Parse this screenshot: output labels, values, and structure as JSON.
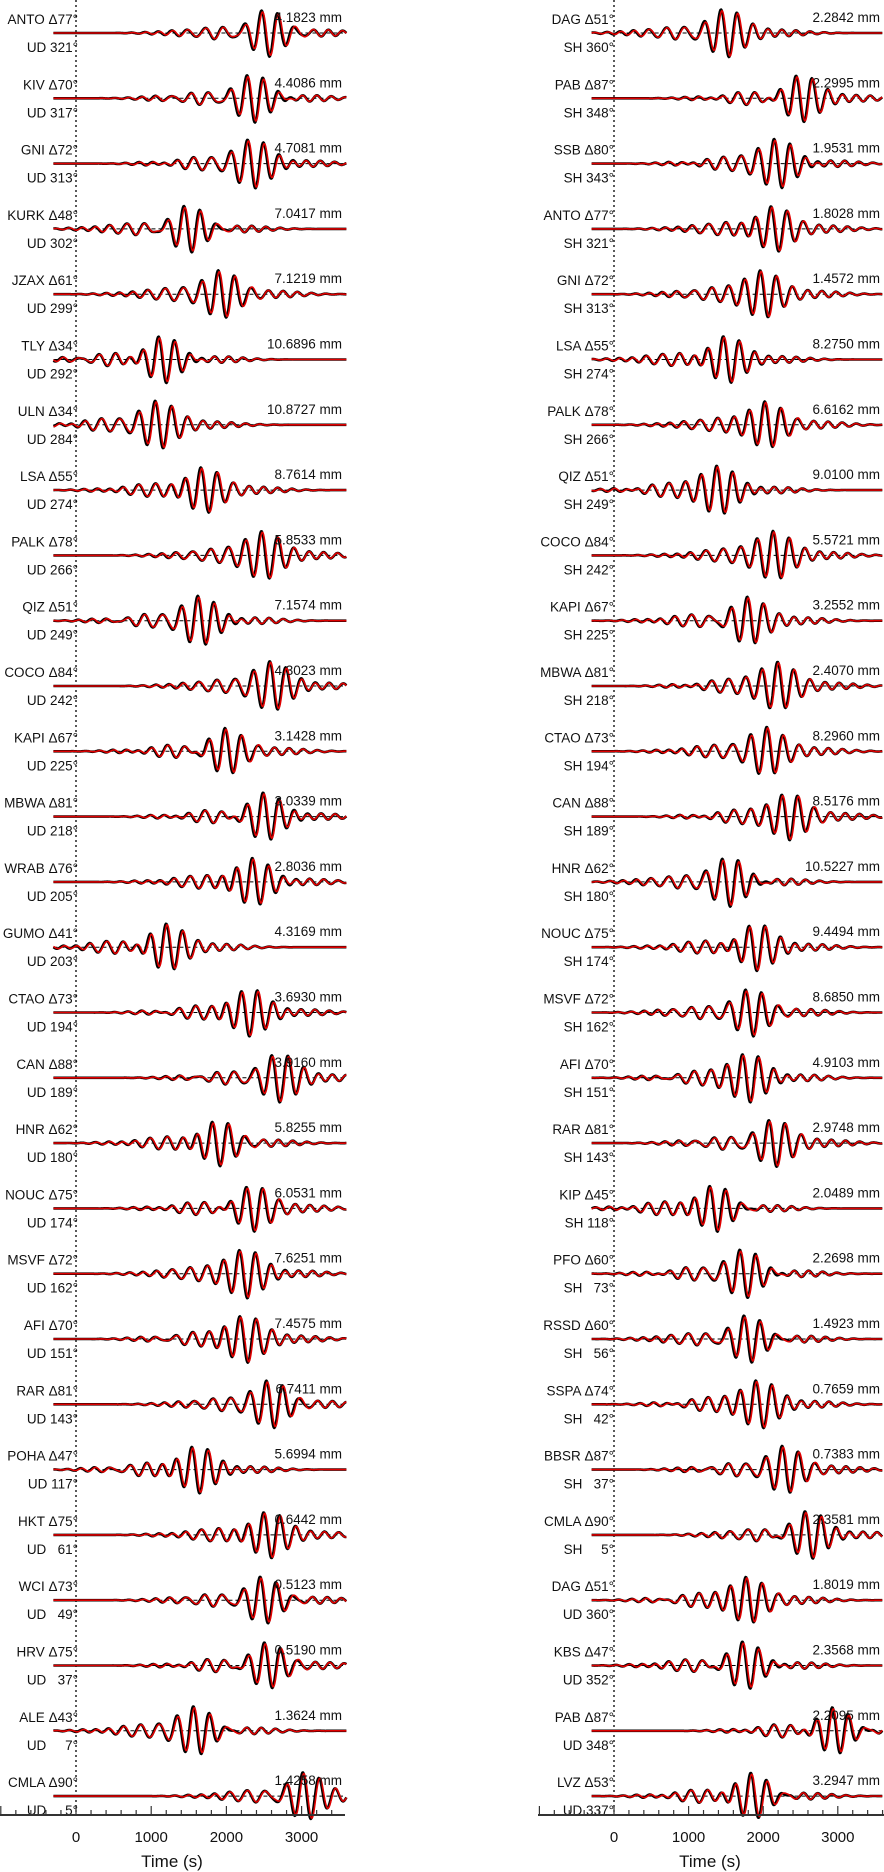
{
  "chart_data": {
    "type": "line",
    "xlabel": "Time (s)",
    "xlim": [
      -1000,
      3600
    ],
    "xticks": [
      0,
      1000,
      2000,
      3000
    ],
    "amplitude_unit": "mm",
    "series_colors": {
      "observed": "#000000",
      "synthetic": "#e00000"
    },
    "panels": [
      {
        "traces": [
          {
            "station": "ANTO",
            "distance": "77",
            "component": "UD",
            "azimuth": "321",
            "amplitude": "4.1823",
            "peak_time": 2550
          },
          {
            "station": "KIV",
            "distance": "70",
            "component": "UD",
            "azimuth": "317",
            "amplitude": "4.4086",
            "peak_time": 2350
          },
          {
            "station": "GNI",
            "distance": "72",
            "component": "UD",
            "azimuth": "313",
            "amplitude": "4.7081",
            "peak_time": 2350
          },
          {
            "station": "KURK",
            "distance": "48",
            "component": "UD",
            "azimuth": "302",
            "amplitude": "7.0417",
            "peak_time": 1500
          },
          {
            "station": "JZAX",
            "distance": "61",
            "component": "UD",
            "azimuth": "299",
            "amplitude": "7.1219",
            "peak_time": 1950
          },
          {
            "station": "TLY",
            "distance": "34",
            "component": "UD",
            "azimuth": "292",
            "amplitude": "10.6896",
            "peak_time": 1150
          },
          {
            "station": "ULN",
            "distance": "34",
            "component": "UD",
            "azimuth": "284",
            "amplitude": "10.8727",
            "peak_time": 1100
          },
          {
            "station": "LSA",
            "distance": "55",
            "component": "UD",
            "azimuth": "274",
            "amplitude": "8.7614",
            "peak_time": 1700
          },
          {
            "station": "PALK",
            "distance": "78",
            "component": "UD",
            "azimuth": "266",
            "amplitude": "5.8533",
            "peak_time": 2500
          },
          {
            "station": "QIZ",
            "distance": "51",
            "component": "UD",
            "azimuth": "249",
            "amplitude": "7.1574",
            "peak_time": 1650
          },
          {
            "station": "COCO",
            "distance": "84",
            "component": "UD",
            "azimuth": "242",
            "amplitude": "4.3023",
            "peak_time": 2600
          },
          {
            "station": "KAPI",
            "distance": "67",
            "component": "UD",
            "azimuth": "225",
            "amplitude": "3.1428",
            "peak_time": 2000
          },
          {
            "station": "MBWA",
            "distance": "81",
            "component": "UD",
            "azimuth": "218",
            "amplitude": "3.0339",
            "peak_time": 2500
          },
          {
            "station": "WRAB",
            "distance": "76",
            "component": "UD",
            "azimuth": "205",
            "amplitude": "2.8036",
            "peak_time": 2350
          },
          {
            "station": "GUMO",
            "distance": "41",
            "component": "UD",
            "azimuth": "203",
            "amplitude": "4.3169",
            "peak_time": 1200
          },
          {
            "station": "CTAO",
            "distance": "73",
            "component": "UD",
            "azimuth": "194",
            "amplitude": "3.6930",
            "peak_time": 2300
          },
          {
            "station": "CAN",
            "distance": "88",
            "component": "UD",
            "azimuth": "189",
            "amplitude": "3.9160",
            "peak_time": 2700
          },
          {
            "station": "HNR",
            "distance": "62",
            "component": "UD",
            "azimuth": "180",
            "amplitude": "5.8255",
            "peak_time": 1900
          },
          {
            "station": "NOUC",
            "distance": "75",
            "component": "UD",
            "azimuth": "174",
            "amplitude": "6.0531",
            "peak_time": 2350
          },
          {
            "station": "MSVF",
            "distance": "72",
            "component": "UD",
            "azimuth": "162",
            "amplitude": "7.6251",
            "peak_time": 2250
          },
          {
            "station": "AFI",
            "distance": "70",
            "component": "UD",
            "azimuth": "151",
            "amplitude": "7.4575",
            "peak_time": 2250
          },
          {
            "station": "RAR",
            "distance": "81",
            "component": "UD",
            "azimuth": "143",
            "amplitude": "6.7411",
            "peak_time": 2600
          },
          {
            "station": "POHA",
            "distance": "47",
            "component": "UD",
            "azimuth": "117",
            "amplitude": "5.6994",
            "peak_time": 1600
          },
          {
            "station": "HKT",
            "distance": "75",
            "component": "UD",
            "azimuth": "61",
            "amplitude": "0.6442",
            "peak_time": 2550
          },
          {
            "station": "WCI",
            "distance": "73",
            "component": "UD",
            "azimuth": "49",
            "amplitude": "0.5123",
            "peak_time": 2500
          },
          {
            "station": "HRV",
            "distance": "75",
            "component": "UD",
            "azimuth": "37",
            "amplitude": "0.5190",
            "peak_time": 2550
          },
          {
            "station": "ALE",
            "distance": "43",
            "component": "UD",
            "azimuth": "7",
            "amplitude": "1.3624",
            "peak_time": 1600
          },
          {
            "station": "CMLA",
            "distance": "90",
            "component": "UD",
            "azimuth": "5",
            "amplitude": "1.4258",
            "peak_time": 3050
          }
        ]
      },
      {
        "traces": [
          {
            "station": "DAG",
            "distance": "51",
            "component": "SH",
            "azimuth": "360",
            "amplitude": "2.2842",
            "peak_time": 1500
          },
          {
            "station": "PAB",
            "distance": "87",
            "component": "SH",
            "azimuth": "348",
            "amplitude": "2.2995",
            "peak_time": 2500
          },
          {
            "station": "SSB",
            "distance": "80",
            "component": "SH",
            "azimuth": "343",
            "amplitude": "1.9531",
            "peak_time": 2200
          },
          {
            "station": "ANTO",
            "distance": "77",
            "component": "SH",
            "azimuth": "321",
            "amplitude": "1.8028",
            "peak_time": 2150
          },
          {
            "station": "GNI",
            "distance": "72",
            "component": "SH",
            "azimuth": "313",
            "amplitude": "1.4572",
            "peak_time": 2000
          },
          {
            "station": "LSA",
            "distance": "55",
            "component": "SH",
            "azimuth": "274",
            "amplitude": "8.2750",
            "peak_time": 1500
          },
          {
            "station": "PALK",
            "distance": "78",
            "component": "SH",
            "azimuth": "266",
            "amplitude": "6.6162",
            "peak_time": 2050
          },
          {
            "station": "QIZ",
            "distance": "51",
            "component": "SH",
            "azimuth": "249",
            "amplitude": "9.0100",
            "peak_time": 1400
          },
          {
            "station": "COCO",
            "distance": "84",
            "component": "SH",
            "azimuth": "242",
            "amplitude": "5.5721",
            "peak_time": 2150
          },
          {
            "station": "KAPI",
            "distance": "67",
            "component": "SH",
            "azimuth": "225",
            "amplitude": "3.2552",
            "peak_time": 1800
          },
          {
            "station": "MBWA",
            "distance": "81",
            "component": "SH",
            "azimuth": "218",
            "amplitude": "2.4070",
            "peak_time": 2200
          },
          {
            "station": "CTAO",
            "distance": "73",
            "component": "SH",
            "azimuth": "194",
            "amplitude": "8.2960",
            "peak_time": 2050
          },
          {
            "station": "CAN",
            "distance": "88",
            "component": "SH",
            "azimuth": "189",
            "amplitude": "8.5176",
            "peak_time": 2350
          },
          {
            "station": "HNR",
            "distance": "62",
            "component": "SH",
            "azimuth": "180",
            "amplitude": "10.5227",
            "peak_time": 1550
          },
          {
            "station": "NOUC",
            "distance": "75",
            "component": "SH",
            "azimuth": "174",
            "amplitude": "9.4494",
            "peak_time": 1900
          },
          {
            "station": "MSVF",
            "distance": "72",
            "component": "SH",
            "azimuth": "162",
            "amplitude": "8.6850",
            "peak_time": 1850
          },
          {
            "station": "AFI",
            "distance": "70",
            "component": "SH",
            "azimuth": "151",
            "amplitude": "4.9103",
            "peak_time": 1800
          },
          {
            "station": "RAR",
            "distance": "81",
            "component": "SH",
            "azimuth": "143",
            "amplitude": "2.9748",
            "peak_time": 2150
          },
          {
            "station": "KIP",
            "distance": "45",
            "component": "SH",
            "azimuth": "118",
            "amplitude": "2.0489",
            "peak_time": 1350
          },
          {
            "station": "PFO",
            "distance": "60",
            "component": "SH",
            "azimuth": "73",
            "amplitude": "2.2698",
            "peak_time": 1750
          },
          {
            "station": "RSSD",
            "distance": "60",
            "component": "SH",
            "azimuth": "56",
            "amplitude": "1.4923",
            "peak_time": 1800
          },
          {
            "station": "SSPA",
            "distance": "74",
            "component": "SH",
            "azimuth": "42",
            "amplitude": "0.7659",
            "peak_time": 1950
          },
          {
            "station": "BBSR",
            "distance": "87",
            "component": "SH",
            "azimuth": "37",
            "amplitude": "0.7383",
            "peak_time": 2300
          },
          {
            "station": "CMLA",
            "distance": "90",
            "component": "SH",
            "azimuth": "5",
            "amplitude": "2.3581",
            "peak_time": 2600
          },
          {
            "station": "DAG",
            "distance": "51",
            "component": "UD",
            "azimuth": "360",
            "amplitude": "1.8019",
            "peak_time": 1800
          },
          {
            "station": "KBS",
            "distance": "47",
            "component": "UD",
            "azimuth": "352",
            "amplitude": "2.3568",
            "peak_time": 1750
          },
          {
            "station": "PAB",
            "distance": "87",
            "component": "UD",
            "azimuth": "348",
            "amplitude": "2.2095",
            "peak_time": 2950
          },
          {
            "station": "LVZ",
            "distance": "53",
            "component": "UD",
            "azimuth": "337",
            "amplitude": "3.2947",
            "peak_time": 1850
          }
        ]
      }
    ]
  }
}
